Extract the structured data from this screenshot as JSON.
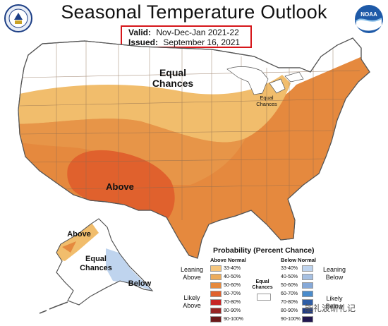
{
  "title": "Seasonal Temperature Outlook",
  "valid_label": "Valid:",
  "valid_value": "Nov-Dec-Jan 2021-22",
  "issued_label": "Issued:",
  "issued_value": "September 16, 2021",
  "logos": {
    "left": "doc-seal-icon",
    "right": "noaa-logo-icon",
    "noaa_text": "NOAA"
  },
  "map_labels": {
    "equal_chances_north": [
      "Equal",
      "Chances"
    ],
    "above_sw": "Above",
    "equal_chances_east": [
      "Equal",
      "Chances"
    ],
    "above_ak": "Above",
    "equal_chances_ak": [
      "Equal",
      "Chances"
    ],
    "below_ak": "Below"
  },
  "colors": {
    "ec": "#ffffff",
    "above_33_40": "#f5c67e",
    "above_40_50": "#ecac5c",
    "above_50_60": "#e5893e",
    "above_60_70": "#e0612d",
    "above_70_80": "#c72626",
    "above_80_90": "#962524",
    "above_90_100": "#6b1a1a",
    "below_33_40": "#bfd4ee",
    "below_40_50": "#a6c0e2",
    "below_50_60": "#86a9d8",
    "below_60_70": "#4b8ccc",
    "below_70_80": "#2e5da6",
    "below_80_90": "#213c85",
    "below_90_100": "#21174f"
  },
  "legend": {
    "title": "Probability (Percent Chance)",
    "above_header": "Above Normal",
    "below_header": "Below Normal",
    "equal_label": [
      "Equal",
      "Chances"
    ],
    "leaning_above": [
      "Leaning",
      "Above"
    ],
    "likely_above": [
      "Likely",
      "Above"
    ],
    "leaning_below": [
      "Leaning",
      "Below"
    ],
    "likely_below": [
      "Likely",
      "Below"
    ],
    "ranges": [
      "33-40%",
      "40-50%",
      "50-60%",
      "60-70%",
      "70-80%",
      "80-90%",
      "90-100%"
    ]
  },
  "watermark": "能礼波研礼记"
}
